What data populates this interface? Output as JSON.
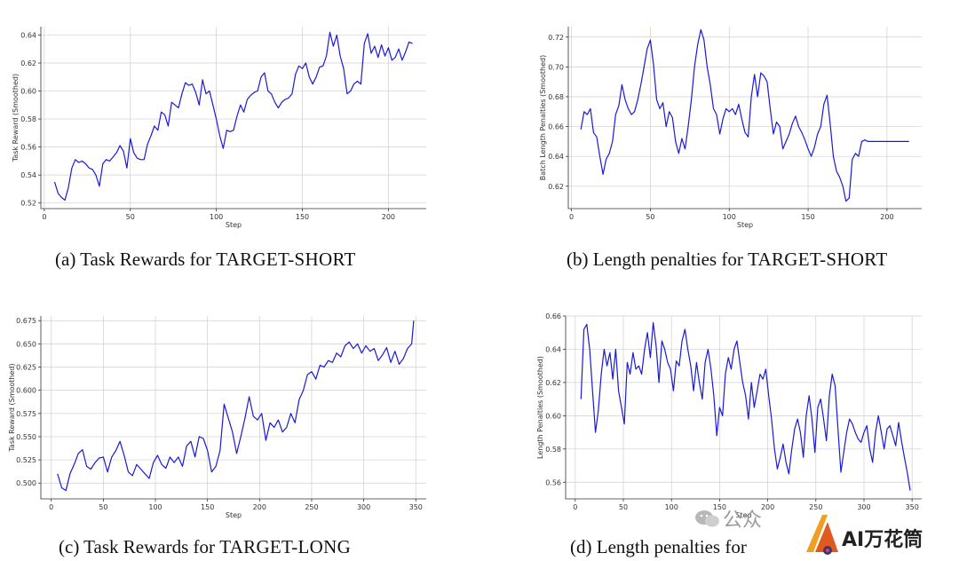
{
  "chart_data": [
    {
      "type": "line",
      "panel": "a",
      "title": "",
      "xlabel": "Step",
      "ylabel": "Task Reward (Smoothed)",
      "xlim": [
        -2,
        222
      ],
      "ylim": [
        0.516,
        0.646
      ],
      "xticks": [
        0,
        50,
        100,
        150,
        200
      ],
      "yticks": [
        0.52,
        0.54,
        0.56,
        0.58,
        0.6,
        0.62,
        0.64
      ],
      "ytick_labels": [
        "0.52",
        "0.54",
        "0.56",
        "0.58",
        "0.60",
        "0.62",
        "0.64"
      ],
      "grid": true,
      "x": [
        6,
        8,
        10,
        12,
        14,
        16,
        18,
        20,
        22,
        24,
        26,
        28,
        30,
        32,
        34,
        36,
        38,
        40,
        42,
        44,
        46,
        48,
        50,
        52,
        54,
        56,
        58,
        60,
        62,
        64,
        66,
        68,
        70,
        72,
        74,
        76,
        78,
        80,
        82,
        84,
        86,
        88,
        90,
        92,
        94,
        96,
        98,
        100,
        102,
        104,
        106,
        108,
        110,
        112,
        114,
        116,
        118,
        120,
        122,
        124,
        126,
        128,
        130,
        132,
        134,
        136,
        138,
        140,
        142,
        144,
        146,
        148,
        150,
        152,
        154,
        156,
        158,
        160,
        162,
        164,
        166,
        168,
        170,
        172,
        174,
        176,
        178,
        180,
        182,
        184,
        186,
        188,
        190,
        192,
        194,
        196,
        198,
        200,
        202,
        204,
        206,
        208,
        210,
        212,
        214
      ],
      "values": [
        0.535,
        0.527,
        0.524,
        0.522,
        0.531,
        0.545,
        0.551,
        0.549,
        0.55,
        0.548,
        0.545,
        0.544,
        0.54,
        0.532,
        0.548,
        0.551,
        0.55,
        0.553,
        0.556,
        0.561,
        0.557,
        0.545,
        0.566,
        0.556,
        0.552,
        0.551,
        0.551,
        0.562,
        0.568,
        0.575,
        0.572,
        0.585,
        0.583,
        0.575,
        0.592,
        0.59,
        0.588,
        0.598,
        0.606,
        0.604,
        0.605,
        0.599,
        0.59,
        0.608,
        0.598,
        0.6,
        0.59,
        0.58,
        0.568,
        0.559,
        0.572,
        0.571,
        0.572,
        0.582,
        0.59,
        0.585,
        0.594,
        0.597,
        0.599,
        0.6,
        0.61,
        0.613,
        0.6,
        0.598,
        0.592,
        0.588,
        0.592,
        0.594,
        0.595,
        0.598,
        0.612,
        0.618,
        0.616,
        0.62,
        0.61,
        0.605,
        0.61,
        0.617,
        0.618,
        0.625,
        0.642,
        0.632,
        0.64,
        0.625,
        0.616,
        0.598,
        0.6,
        0.605,
        0.607,
        0.605,
        0.634,
        0.641,
        0.627,
        0.632,
        0.624,
        0.633,
        0.625,
        0.631,
        0.622,
        0.624,
        0.63,
        0.622,
        0.628,
        0.635,
        0.634
      ]
    },
    {
      "type": "line",
      "panel": "b",
      "title": "",
      "xlabel": "Step",
      "ylabel": "Batch Length Penalties (Smoothed)",
      "xlim": [
        -2,
        222
      ],
      "ylim": [
        0.605,
        0.727
      ],
      "xticks": [
        0,
        50,
        100,
        150,
        200
      ],
      "yticks": [
        0.62,
        0.64,
        0.66,
        0.68,
        0.7,
        0.72
      ],
      "ytick_labels": [
        "0.62",
        "0.64",
        "0.66",
        "0.68",
        "0.70",
        "0.72"
      ],
      "grid": true,
      "x": [
        6,
        8,
        10,
        12,
        14,
        16,
        18,
        20,
        22,
        24,
        26,
        28,
        30,
        32,
        34,
        36,
        38,
        40,
        42,
        44,
        46,
        48,
        50,
        52,
        54,
        56,
        58,
        60,
        62,
        64,
        66,
        68,
        70,
        72,
        74,
        76,
        78,
        80,
        82,
        84,
        86,
        88,
        90,
        92,
        94,
        96,
        98,
        100,
        102,
        104,
        106,
        108,
        110,
        112,
        114,
        116,
        118,
        120,
        122,
        124,
        126,
        128,
        130,
        132,
        134,
        136,
        138,
        140,
        142,
        144,
        146,
        148,
        150,
        152,
        154,
        156,
        158,
        160,
        162,
        164,
        166,
        168,
        170,
        172,
        174,
        176,
        178,
        180,
        182,
        184,
        186,
        188,
        190,
        192,
        194,
        196,
        198,
        200,
        202,
        204,
        206,
        208,
        210,
        212,
        214
      ],
      "values": [
        0.658,
        0.67,
        0.668,
        0.672,
        0.656,
        0.653,
        0.64,
        0.628,
        0.638,
        0.642,
        0.65,
        0.668,
        0.674,
        0.688,
        0.678,
        0.672,
        0.668,
        0.67,
        0.678,
        0.688,
        0.7,
        0.712,
        0.718,
        0.702,
        0.678,
        0.672,
        0.676,
        0.66,
        0.67,
        0.666,
        0.65,
        0.642,
        0.652,
        0.645,
        0.66,
        0.678,
        0.7,
        0.715,
        0.725,
        0.718,
        0.7,
        0.688,
        0.672,
        0.668,
        0.655,
        0.665,
        0.672,
        0.67,
        0.672,
        0.668,
        0.675,
        0.665,
        0.656,
        0.653,
        0.68,
        0.695,
        0.68,
        0.696,
        0.694,
        0.69,
        0.672,
        0.655,
        0.663,
        0.66,
        0.645,
        0.65,
        0.655,
        0.662,
        0.667,
        0.66,
        0.656,
        0.651,
        0.645,
        0.64,
        0.646,
        0.655,
        0.66,
        0.675,
        0.681,
        0.662,
        0.64,
        0.63,
        0.626,
        0.62,
        0.61,
        0.612,
        0.638,
        0.642,
        0.64,
        0.65,
        0.651,
        0.65,
        0.65,
        0.65,
        0.65,
        0.65,
        0.65,
        0.65,
        0.65,
        0.65,
        0.65,
        0.65,
        0.65,
        0.65,
        0.65
      ]
    },
    {
      "type": "line",
      "panel": "c",
      "title": "",
      "xlabel": "Step",
      "ylabel": "Task Reward (Smoothed)",
      "xlim": [
        -10,
        360
      ],
      "ylim": [
        0.483,
        0.68
      ],
      "xticks": [
        0,
        50,
        100,
        150,
        200,
        250,
        300,
        350
      ],
      "yticks": [
        0.5,
        0.525,
        0.55,
        0.575,
        0.6,
        0.625,
        0.65,
        0.675
      ],
      "ytick_labels": [
        "0.500",
        "0.525",
        "0.550",
        "0.575",
        "0.600",
        "0.625",
        "0.650",
        "0.675"
      ],
      "grid": true,
      "x": [
        6,
        10,
        14,
        18,
        22,
        26,
        30,
        34,
        38,
        42,
        46,
        50,
        54,
        58,
        62,
        66,
        70,
        74,
        78,
        82,
        86,
        90,
        94,
        98,
        102,
        106,
        110,
        114,
        118,
        122,
        126,
        130,
        134,
        138,
        142,
        146,
        150,
        154,
        158,
        162,
        166,
        170,
        174,
        178,
        182,
        186,
        190,
        194,
        198,
        202,
        206,
        210,
        214,
        218,
        222,
        226,
        230,
        234,
        238,
        242,
        246,
        250,
        254,
        258,
        262,
        266,
        270,
        274,
        278,
        282,
        286,
        290,
        294,
        298,
        302,
        306,
        310,
        314,
        318,
        322,
        326,
        330,
        334,
        338,
        342,
        346,
        348
      ],
      "values": [
        0.51,
        0.495,
        0.492,
        0.51,
        0.52,
        0.532,
        0.536,
        0.518,
        0.515,
        0.522,
        0.527,
        0.528,
        0.512,
        0.528,
        0.535,
        0.545,
        0.53,
        0.512,
        0.508,
        0.52,
        0.515,
        0.51,
        0.505,
        0.522,
        0.53,
        0.52,
        0.516,
        0.528,
        0.522,
        0.528,
        0.518,
        0.54,
        0.545,
        0.528,
        0.55,
        0.548,
        0.535,
        0.512,
        0.518,
        0.535,
        0.585,
        0.57,
        0.555,
        0.532,
        0.55,
        0.57,
        0.593,
        0.572,
        0.568,
        0.575,
        0.546,
        0.565,
        0.56,
        0.568,
        0.555,
        0.56,
        0.575,
        0.565,
        0.59,
        0.6,
        0.617,
        0.62,
        0.612,
        0.627,
        0.625,
        0.632,
        0.63,
        0.64,
        0.636,
        0.648,
        0.652,
        0.645,
        0.65,
        0.64,
        0.648,
        0.642,
        0.645,
        0.632,
        0.638,
        0.646,
        0.63,
        0.642,
        0.628,
        0.634,
        0.645,
        0.65,
        0.675
      ]
    },
    {
      "type": "line",
      "panel": "d",
      "title": "",
      "xlabel": "Step",
      "ylabel": "Length Penalties (Smoothed)",
      "xlim": [
        -10,
        360
      ],
      "ylim": [
        0.55,
        0.66
      ],
      "xticks": [
        0,
        50,
        100,
        150,
        200,
        250,
        300,
        350
      ],
      "yticks": [
        0.56,
        0.58,
        0.6,
        0.62,
        0.64,
        0.66
      ],
      "ytick_labels": [
        "0.56",
        "0.58",
        "0.60",
        "0.62",
        "0.64",
        "0.66"
      ],
      "grid": true,
      "x": [
        6,
        9,
        12,
        15,
        18,
        21,
        24,
        27,
        30,
        33,
        36,
        39,
        42,
        45,
        48,
        51,
        54,
        57,
        60,
        63,
        66,
        69,
        72,
        75,
        78,
        81,
        84,
        87,
        90,
        93,
        96,
        99,
        102,
        105,
        108,
        111,
        114,
        117,
        120,
        123,
        126,
        129,
        132,
        135,
        138,
        141,
        144,
        147,
        150,
        153,
        156,
        159,
        162,
        165,
        168,
        171,
        174,
        177,
        180,
        183,
        186,
        189,
        192,
        195,
        198,
        201,
        204,
        207,
        210,
        213,
        216,
        219,
        222,
        225,
        228,
        231,
        234,
        237,
        240,
        243,
        246,
        249,
        252,
        255,
        258,
        261,
        264,
        267,
        270,
        273,
        276,
        279,
        282,
        285,
        288,
        291,
        294,
        297,
        300,
        303,
        306,
        309,
        312,
        315,
        318,
        321,
        324,
        327,
        330,
        333,
        336,
        339,
        342,
        345,
        348
      ],
      "values": [
        0.61,
        0.652,
        0.655,
        0.64,
        0.615,
        0.59,
        0.603,
        0.625,
        0.64,
        0.63,
        0.638,
        0.622,
        0.64,
        0.615,
        0.605,
        0.595,
        0.632,
        0.625,
        0.638,
        0.628,
        0.63,
        0.625,
        0.64,
        0.65,
        0.635,
        0.656,
        0.642,
        0.62,
        0.645,
        0.64,
        0.632,
        0.628,
        0.615,
        0.633,
        0.63,
        0.645,
        0.652,
        0.64,
        0.63,
        0.615,
        0.632,
        0.62,
        0.61,
        0.632,
        0.64,
        0.628,
        0.612,
        0.588,
        0.605,
        0.6,
        0.625,
        0.635,
        0.628,
        0.64,
        0.645,
        0.632,
        0.62,
        0.612,
        0.598,
        0.62,
        0.605,
        0.615,
        0.625,
        0.622,
        0.628,
        0.612,
        0.598,
        0.58,
        0.568,
        0.575,
        0.583,
        0.572,
        0.565,
        0.58,
        0.592,
        0.598,
        0.59,
        0.575,
        0.6,
        0.612,
        0.598,
        0.578,
        0.605,
        0.61,
        0.598,
        0.585,
        0.612,
        0.625,
        0.618,
        0.592,
        0.566,
        0.578,
        0.59,
        0.598,
        0.595,
        0.59,
        0.586,
        0.584,
        0.59,
        0.594,
        0.58,
        0.572,
        0.59,
        0.6,
        0.59,
        0.58,
        0.592,
        0.594,
        0.588,
        0.582,
        0.596,
        0.585,
        0.575,
        0.566,
        0.555
      ]
    }
  ],
  "captions": {
    "a": {
      "prefix": "(a) Task Rewards for ",
      "name": "TARGET-SHORT"
    },
    "b": {
      "prefix": "(b) Length penalties for ",
      "name": "TARGET-SHORT"
    },
    "c": {
      "prefix": "(c) Task Rewards for ",
      "name": "TARGET-LONG"
    },
    "d": {
      "prefix": "(d) Length penalties for",
      "name": ""
    }
  },
  "watermark": {
    "faded_text": "公众",
    "brand_text": "AI万花筒"
  }
}
